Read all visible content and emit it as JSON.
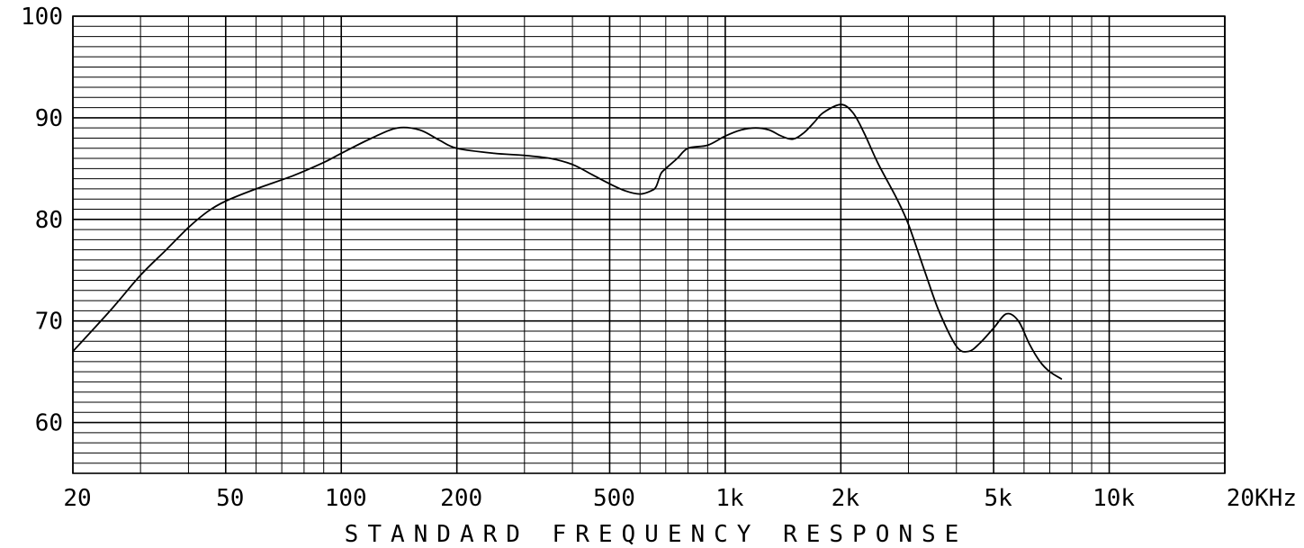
{
  "chart_data": {
    "type": "line",
    "title": "STANDARD FREQUENCY RESPONSE",
    "xlabel": "",
    "ylabel": "",
    "x_scale": "log",
    "xlim": [
      20,
      20000
    ],
    "ylim": [
      55,
      100
    ],
    "grid": true,
    "x_ticks": [
      {
        "value": 20,
        "label": "20"
      },
      {
        "value": 50,
        "label": "50"
      },
      {
        "value": 100,
        "label": "100"
      },
      {
        "value": 200,
        "label": "200"
      },
      {
        "value": 500,
        "label": "500"
      },
      {
        "value": 1000,
        "label": "1k"
      },
      {
        "value": 2000,
        "label": "2k"
      },
      {
        "value": 5000,
        "label": "5k"
      },
      {
        "value": 10000,
        "label": "10k"
      },
      {
        "value": 20000,
        "label": "20KHz"
      }
    ],
    "y_ticks": [
      {
        "value": 60,
        "label": "60"
      },
      {
        "value": 70,
        "label": "70"
      },
      {
        "value": 80,
        "label": "80"
      },
      {
        "value": 90,
        "label": "90"
      },
      {
        "value": 100,
        "label": "100"
      }
    ],
    "series": [
      {
        "color": "#000000",
        "x": [
          20,
          25,
          30,
          35,
          40,
          45,
          50,
          60,
          75,
          90,
          100,
          120,
          140,
          160,
          180,
          200,
          250,
          300,
          350,
          400,
          450,
          500,
          550,
          600,
          640,
          660,
          680,
          700,
          750,
          800,
          900,
          1000,
          1100,
          1200,
          1300,
          1400,
          1500,
          1600,
          1700,
          1800,
          2000,
          2150,
          2300,
          2500,
          2800,
          3000,
          3300,
          3600,
          4000,
          4300,
          4600,
          5000,
          5400,
          5800,
          6200,
          6600,
          7000,
          7500
        ],
        "y": [
          67,
          71,
          74.5,
          77,
          79.2,
          80.8,
          81.8,
          83,
          84.3,
          85.6,
          86.5,
          88,
          89,
          88.8,
          87.8,
          87,
          86.5,
          86.3,
          86,
          85.4,
          84.4,
          83.5,
          82.8,
          82.5,
          82.8,
          83.2,
          84.5,
          85,
          86,
          87,
          87.3,
          88.2,
          88.8,
          89,
          88.8,
          88.2,
          87.9,
          88.5,
          89.5,
          90.5,
          91.3,
          90.5,
          88.5,
          85.5,
          82,
          79.5,
          75,
          71,
          67.5,
          67,
          67.8,
          69.3,
          70.7,
          70,
          67.7,
          66,
          65,
          64.3
        ]
      }
    ]
  }
}
